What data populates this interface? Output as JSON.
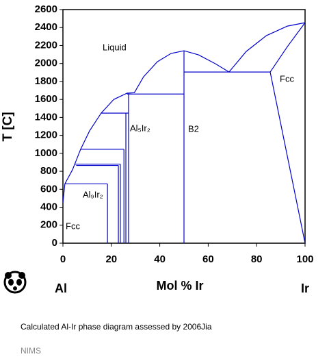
{
  "chart_data": {
    "type": "line",
    "y_label": "T [C]",
    "x_label": "Mol % Ir",
    "components": [
      "Al",
      "Ir"
    ],
    "annotations": [
      "Liquid",
      "Fcc",
      "B2",
      "Al₅Ir₂",
      "Al₉Ir₂",
      "Fcc"
    ],
    "xlim": [
      0,
      100
    ],
    "xticks": [
      0,
      20,
      40,
      60,
      80,
      100
    ],
    "ylim": [
      0,
      2600
    ],
    "yticks": [
      0,
      200,
      400,
      600,
      800,
      1000,
      1200,
      1400,
      1600,
      1800,
      2000,
      2200,
      2400,
      2600
    ],
    "color": "#0000cc",
    "series": [
      {
        "x": [
          0.8,
          4,
          7.3,
          11,
          15.8,
          21,
          26.5,
          29.5,
          33.3,
          39,
          44.6,
          50,
          56,
          63,
          68.6,
          75.7,
          84,
          92.7,
          100
        ],
        "values": [
          660,
          820,
          1045,
          1250,
          1448,
          1600,
          1670,
          1675,
          1852,
          2020,
          2111,
          2142,
          2096,
          1997,
          1905,
          2134,
          2310,
          2416,
          2454
        ]
      },
      {
        "x": [
          100,
          92.7,
          85.6
        ],
        "values": [
          2454,
          2188,
          1905
        ]
      },
      {
        "x": [
          85.6,
          100
        ],
        "values": [
          1905,
          0
        ]
      },
      {
        "x": [
          50,
          85.6
        ],
        "values": [
          1905,
          1905
        ]
      },
      {
        "x": [
          50,
          50
        ],
        "values": [
          0,
          2142
        ]
      },
      {
        "x": [
          26.5,
          50
        ],
        "values": [
          1660,
          1660
        ]
      },
      {
        "x": [
          27.1,
          27.1
        ],
        "values": [
          0,
          1660
        ]
      },
      {
        "x": [
          15.8,
          27.1
        ],
        "values": [
          1448,
          1448
        ]
      },
      {
        "x": [
          26,
          26
        ],
        "values": [
          0,
          1448
        ]
      },
      {
        "x": [
          7.3,
          25.2
        ],
        "values": [
          1045,
          1045
        ]
      },
      {
        "x": [
          25.2,
          25.2
        ],
        "values": [
          0,
          1045
        ]
      },
      {
        "x": [
          5,
          23.7
        ],
        "values": [
          880,
          880
        ]
      },
      {
        "x": [
          23.7,
          23.7
        ],
        "values": [
          0,
          880
        ]
      },
      {
        "x": [
          5.5,
          22.9
        ],
        "values": [
          865,
          865
        ]
      },
      {
        "x": [
          22.9,
          22.9
        ],
        "values": [
          0,
          865
        ]
      },
      {
        "x": [
          0.8,
          18.4
        ],
        "values": [
          660,
          660
        ]
      },
      {
        "x": [
          18.4,
          18.4
        ],
        "values": [
          0,
          660
        ]
      },
      {
        "x": [
          0,
          0.8
        ],
        "values": [
          450,
          660
        ]
      }
    ]
  },
  "caption": "Calculated Al-Ir phase diagram assessed by 2006Jia",
  "source": "NIMS"
}
